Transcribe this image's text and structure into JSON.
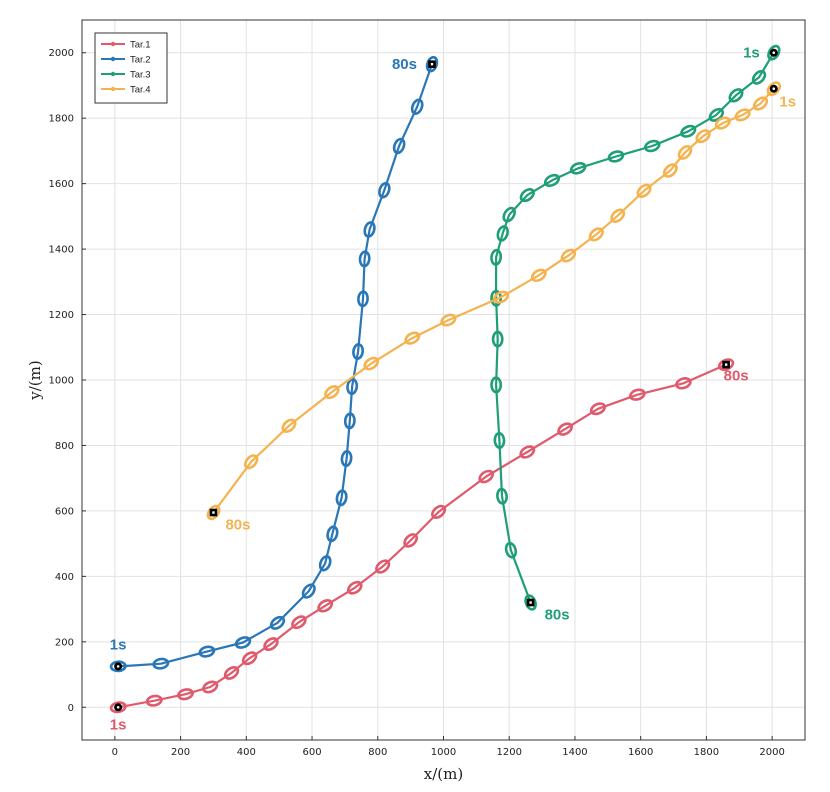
{
  "chart_data": {
    "type": "line",
    "title": "",
    "xlabel": "x/(m)",
    "ylabel": "y/(m)",
    "xlim": [
      -100,
      2100
    ],
    "ylim": [
      -100,
      2100
    ],
    "xticks": [
      0,
      200,
      400,
      600,
      800,
      1000,
      1200,
      1400,
      1600,
      1800,
      2000
    ],
    "yticks": [
      0,
      200,
      400,
      600,
      800,
      1000,
      1200,
      1400,
      1600,
      1800,
      2000
    ],
    "grid": true,
    "legend": "top-left",
    "series": [
      {
        "name": "Tar.1",
        "color": "#e05a6d",
        "start_label": "1s",
        "end_label": "80s",
        "points": [
          [
            10,
            0
          ],
          [
            120,
            20
          ],
          [
            215,
            40
          ],
          [
            290,
            62
          ],
          [
            355,
            105
          ],
          [
            410,
            150
          ],
          [
            475,
            193
          ],
          [
            560,
            260
          ],
          [
            640,
            310
          ],
          [
            730,
            365
          ],
          [
            815,
            430
          ],
          [
            900,
            510
          ],
          [
            985,
            597
          ],
          [
            1130,
            705
          ],
          [
            1255,
            780
          ],
          [
            1370,
            850
          ],
          [
            1470,
            912
          ],
          [
            1590,
            955
          ],
          [
            1730,
            990
          ],
          [
            1860,
            1047
          ]
        ]
      },
      {
        "name": "Tar.2",
        "color": "#2a77b7",
        "start_label": "1s",
        "end_label": "80s",
        "points": [
          [
            10,
            125
          ],
          [
            140,
            133
          ],
          [
            280,
            170
          ],
          [
            390,
            198
          ],
          [
            495,
            258
          ],
          [
            590,
            355
          ],
          [
            640,
            440
          ],
          [
            662,
            530
          ],
          [
            690,
            640
          ],
          [
            705,
            760
          ],
          [
            715,
            875
          ],
          [
            722,
            980
          ],
          [
            740,
            1087
          ],
          [
            755,
            1248
          ],
          [
            760,
            1370
          ],
          [
            775,
            1460
          ],
          [
            820,
            1580
          ],
          [
            865,
            1715
          ],
          [
            920,
            1835
          ],
          [
            965,
            1965
          ]
        ]
      },
      {
        "name": "Tar.3",
        "color": "#1f9e78",
        "start_label": "1s",
        "end_label": "80s",
        "points": [
          [
            2005,
            2000
          ],
          [
            1960,
            1925
          ],
          [
            1890,
            1870
          ],
          [
            1830,
            1810
          ],
          [
            1745,
            1760
          ],
          [
            1635,
            1715
          ],
          [
            1525,
            1683
          ],
          [
            1410,
            1647
          ],
          [
            1330,
            1610
          ],
          [
            1255,
            1565
          ],
          [
            1200,
            1505
          ],
          [
            1180,
            1448
          ],
          [
            1160,
            1375
          ],
          [
            1160,
            1250
          ],
          [
            1165,
            1125
          ],
          [
            1160,
            985
          ],
          [
            1170,
            815
          ],
          [
            1178,
            645
          ],
          [
            1205,
            480
          ],
          [
            1265,
            320
          ]
        ]
      },
      {
        "name": "Tar.4",
        "color": "#f4b350",
        "start_label": "1s",
        "end_label": "80s",
        "points": [
          [
            2005,
            1890
          ],
          [
            1965,
            1845
          ],
          [
            1910,
            1810
          ],
          [
            1850,
            1785
          ],
          [
            1790,
            1745
          ],
          [
            1735,
            1695
          ],
          [
            1690,
            1640
          ],
          [
            1610,
            1578
          ],
          [
            1530,
            1502
          ],
          [
            1465,
            1445
          ],
          [
            1380,
            1380
          ],
          [
            1290,
            1320
          ],
          [
            1175,
            1253
          ],
          [
            1015,
            1183
          ],
          [
            905,
            1128
          ],
          [
            780,
            1050
          ],
          [
            660,
            963
          ],
          [
            530,
            860
          ],
          [
            415,
            750
          ],
          [
            300,
            595
          ]
        ]
      }
    ]
  }
}
